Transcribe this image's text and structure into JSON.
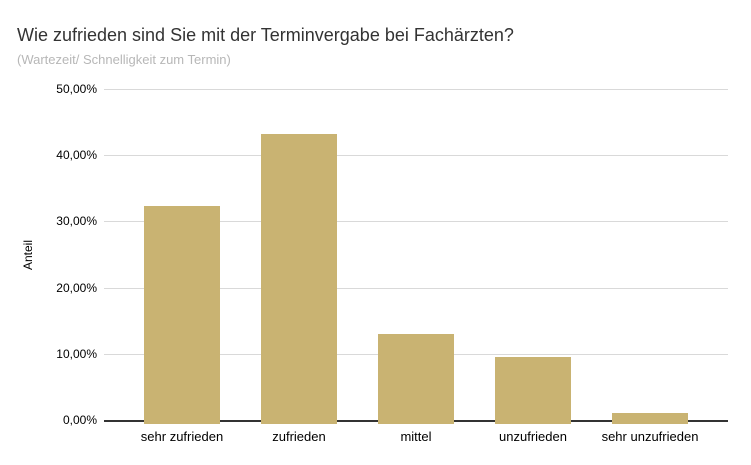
{
  "header": {
    "title": "Wie zufrieden sind Sie mit der Terminvergabe bei Fachärzten?",
    "subtitle": "(Wartezeit/ Schnelligkeit zum Termin)"
  },
  "chart_data": {
    "type": "bar",
    "title": "Wie zufrieden sind Sie mit der Terminvergabe bei Fachärzten?",
    "subtitle": "(Wartezeit/ Schnelligkeit zum Termin)",
    "categories": [
      "sehr zufrieden",
      "zufrieden",
      "mittel",
      "unzufrieden",
      "sehr unzufrieden"
    ],
    "values": [
      32.5,
      43.3,
      13.2,
      9.6,
      1.2
    ],
    "value_unit": "%",
    "xlabel": "",
    "ylabel": "Anteil",
    "ylim": [
      0,
      50
    ],
    "ytick_step": 10,
    "ytick_labels": [
      "0,00%",
      "10,00%",
      "20,00%",
      "30,00%",
      "40,00%",
      "50,00%"
    ],
    "grid": true,
    "legend_position": "none",
    "bar_color": "#c9b372",
    "grid_color": "#d9d9d9",
    "axis_color": "#333333",
    "title_color": "#333333",
    "subtitle_color": "#b7b7b7",
    "tick_label_color": "#000000",
    "background_color": "#ffffff"
  }
}
